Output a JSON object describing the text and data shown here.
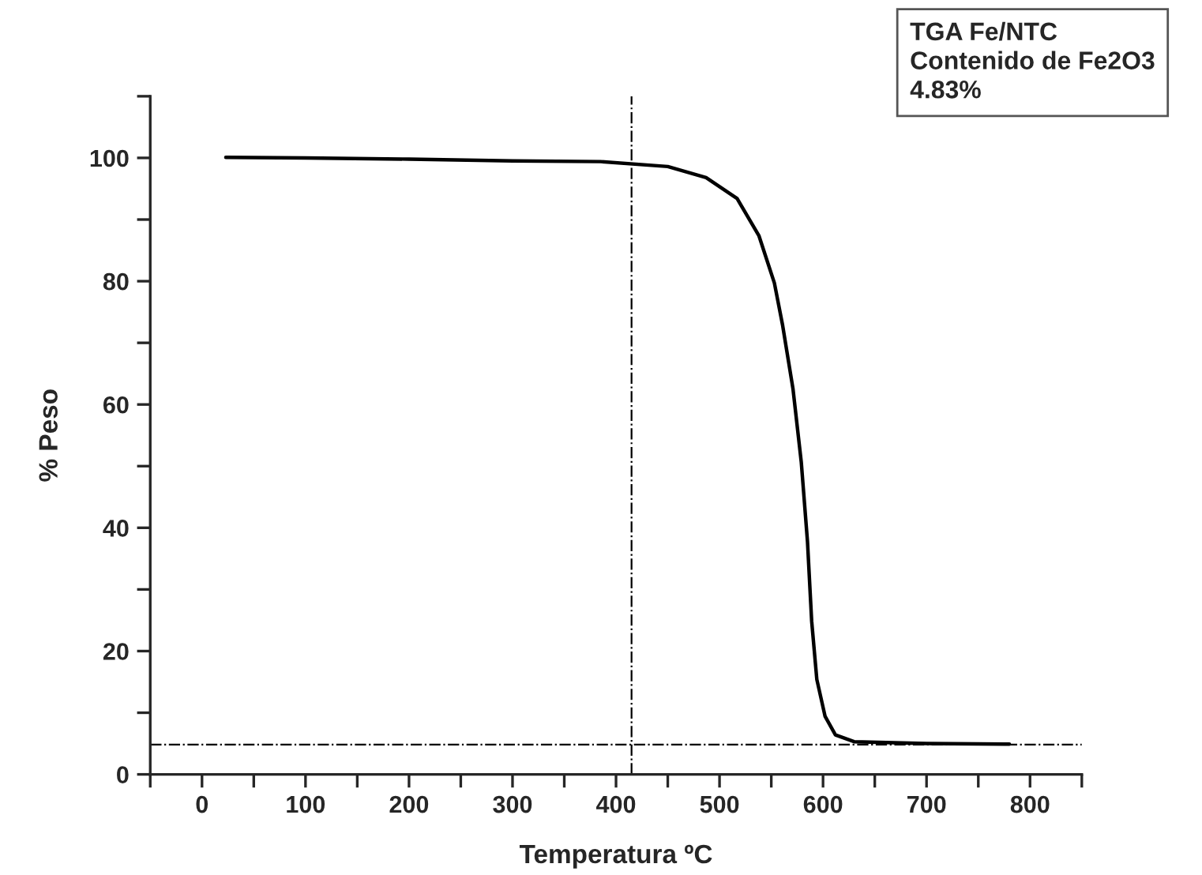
{
  "chart_data": {
    "type": "line",
    "xlabel": "Temperatura ºC",
    "ylabel": "% Peso",
    "annotations": [
      "TGA Fe/NTC",
      "Contenido de Fe2O3",
      "4.83%"
    ],
    "series": [
      {
        "color": "#000000",
        "x": [
          23,
          100,
          200,
          300,
          385,
          450,
          487,
          517,
          538,
          553,
          561,
          571,
          579,
          585,
          589,
          594,
          602,
          612,
          630,
          700,
          780
        ],
        "values": [
          100.1,
          100,
          99.8,
          99.5,
          99.4,
          98.6,
          96.8,
          93.4,
          87.4,
          79.7,
          72.8,
          62.5,
          50.6,
          37.7,
          24.9,
          15.4,
          9.4,
          6.4,
          5.3,
          5.0,
          4.9
        ]
      }
    ],
    "ref_lines": [
      {
        "axis": "x",
        "value": 415,
        "color": "#000000",
        "line_style": "dashdot"
      },
      {
        "axis": "y",
        "value": 4.83,
        "color": "#000000",
        "line_style": "dashdot"
      }
    ],
    "xlim": [
      -50,
      850
    ],
    "ylim": [
      0,
      110
    ],
    "xticks": [
      {
        "value": -50,
        "label": null
      },
      0,
      {
        "value": 50,
        "label": null
      },
      100,
      {
        "value": 150,
        "label": null
      },
      200,
      {
        "value": 250,
        "label": null
      },
      300,
      {
        "value": 350,
        "label": null
      },
      400,
      {
        "value": 450,
        "label": null
      },
      500,
      {
        "value": 550,
        "label": null
      },
      600,
      {
        "value": 650,
        "label": null
      },
      700,
      {
        "value": 750,
        "label": null
      },
      800,
      {
        "value": 850,
        "label": null
      }
    ],
    "yticks": [
      0,
      {
        "value": 10,
        "label": null
      },
      20,
      {
        "value": 30,
        "label": null
      },
      40,
      {
        "value": 50,
        "label": null
      },
      60,
      {
        "value": 70,
        "label": null
      },
      80,
      {
        "value": 90,
        "label": null
      },
      100,
      {
        "value": 110,
        "label": null
      }
    ],
    "grid": false,
    "legend": false,
    "marker": "none",
    "line_style": "solid"
  }
}
